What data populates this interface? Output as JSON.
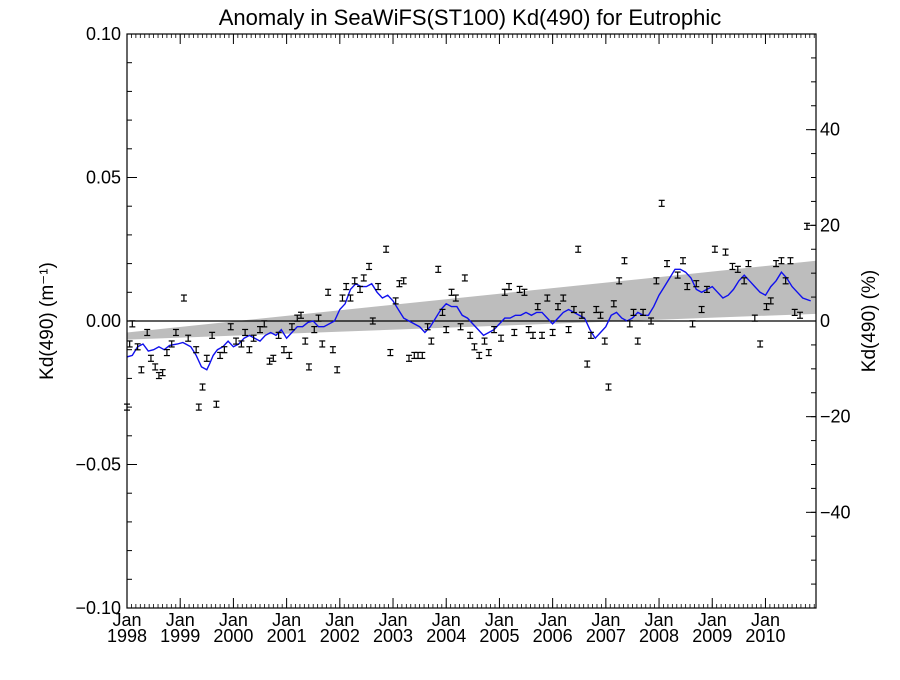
{
  "chart_data": {
    "type": "scatter",
    "title": "Anomaly in SeaWiFS(ST100) Kd(490) for Eutrophic",
    "ylabel": "Kd(490) (m⁻¹)",
    "y2label": "Kd(490) (%)",
    "xlim": [
      1998.0,
      2010.95
    ],
    "ylim": [
      -0.1,
      0.1
    ],
    "y2lim": [
      -60,
      60
    ],
    "yticks": [
      "0.10",
      "0.05",
      "0.00",
      "−0.05",
      "−0.10"
    ],
    "yticks_values": [
      0.1,
      0.05,
      0.0,
      -0.05,
      -0.1
    ],
    "y2ticks": [
      "40",
      "20",
      "0",
      "−20",
      "−40"
    ],
    "y2ticks_values": [
      40,
      20,
      0,
      -20,
      -40
    ],
    "xticks": [
      {
        "month": "Jan",
        "year": "1998",
        "value": 1998
      },
      {
        "month": "Jan",
        "year": "1999",
        "value": 1999
      },
      {
        "month": "Jan",
        "year": "2000",
        "value": 2000
      },
      {
        "month": "Jan",
        "year": "2001",
        "value": 2001
      },
      {
        "month": "Jan",
        "year": "2002",
        "value": 2002
      },
      {
        "month": "Jan",
        "year": "2003",
        "value": 2003
      },
      {
        "month": "Jan",
        "year": "2004",
        "value": 2004
      },
      {
        "month": "Jan",
        "year": "2005",
        "value": 2005
      },
      {
        "month": "Jan",
        "year": "2006",
        "value": 2006
      },
      {
        "month": "Jan",
        "year": "2007",
        "value": 2007
      },
      {
        "month": "Jan",
        "year": "2008",
        "value": 2008
      },
      {
        "month": "Jan",
        "year": "2009",
        "value": 2009
      },
      {
        "month": "Jan",
        "year": "2010",
        "value": 2010
      }
    ],
    "zero_line": 0.0,
    "trend_band": {
      "upper": [
        [
          1998.0,
          -0.004
        ],
        [
          2010.95,
          0.021
        ]
      ],
      "lower": [
        [
          1998.0,
          -0.0065
        ],
        [
          2010.95,
          0.0025
        ]
      ]
    },
    "series": [
      {
        "kind": "points",
        "values": [
          [
            1998.0,
            -0.03
          ],
          [
            1998.05,
            -0.008
          ],
          [
            1998.1,
            -0.001
          ],
          [
            1998.2,
            -0.009
          ],
          [
            1998.27,
            -0.017
          ],
          [
            1998.38,
            -0.004
          ],
          [
            1998.45,
            -0.013
          ],
          [
            1998.53,
            -0.016
          ],
          [
            1998.6,
            -0.019
          ],
          [
            1998.67,
            -0.018
          ],
          [
            1998.75,
            -0.011
          ],
          [
            1998.84,
            -0.008
          ],
          [
            1998.92,
            -0.004
          ],
          [
            1999.07,
            0.008
          ],
          [
            1999.15,
            -0.006
          ],
          [
            1999.3,
            -0.01
          ],
          [
            1999.35,
            -0.03
          ],
          [
            1999.42,
            -0.023
          ],
          [
            1999.5,
            -0.013
          ],
          [
            1999.6,
            -0.005
          ],
          [
            1999.68,
            -0.029
          ],
          [
            1999.75,
            -0.012
          ],
          [
            1999.83,
            -0.01
          ],
          [
            1999.95,
            -0.002
          ],
          [
            2000.05,
            -0.007
          ],
          [
            2000.15,
            -0.008
          ],
          [
            2000.22,
            -0.004
          ],
          [
            2000.3,
            -0.01
          ],
          [
            2000.38,
            -0.006
          ],
          [
            2000.5,
            -0.003
          ],
          [
            2000.58,
            -0.001
          ],
          [
            2000.68,
            -0.014
          ],
          [
            2000.75,
            -0.013
          ],
          [
            2000.85,
            -0.005
          ],
          [
            2000.95,
            -0.01
          ],
          [
            2001.05,
            -0.012
          ],
          [
            2001.1,
            -0.002
          ],
          [
            2001.2,
            0.001
          ],
          [
            2001.27,
            0.002
          ],
          [
            2001.35,
            -0.007
          ],
          [
            2001.42,
            -0.016
          ],
          [
            2001.52,
            -0.003
          ],
          [
            2001.6,
            0.001
          ],
          [
            2001.67,
            -0.008
          ],
          [
            2001.78,
            0.01
          ],
          [
            2001.87,
            -0.01
          ],
          [
            2001.95,
            -0.017
          ],
          [
            2002.05,
            0.008
          ],
          [
            2002.12,
            0.012
          ],
          [
            2002.2,
            0.008
          ],
          [
            2002.28,
            0.014
          ],
          [
            2002.38,
            0.011
          ],
          [
            2002.45,
            0.015
          ],
          [
            2002.55,
            0.019
          ],
          [
            2002.62,
            0.0
          ],
          [
            2002.72,
            0.012
          ],
          [
            2002.87,
            0.025
          ],
          [
            2002.95,
            -0.011
          ],
          [
            2003.05,
            0.007
          ],
          [
            2003.12,
            0.013
          ],
          [
            2003.2,
            0.014
          ],
          [
            2003.3,
            -0.013
          ],
          [
            2003.4,
            -0.012
          ],
          [
            2003.47,
            -0.012
          ],
          [
            2003.55,
            -0.012
          ],
          [
            2003.65,
            -0.002
          ],
          [
            2003.72,
            -0.007
          ],
          [
            2003.85,
            0.018
          ],
          [
            2003.93,
            0.003
          ],
          [
            2004.0,
            -0.003
          ],
          [
            2004.1,
            0.01
          ],
          [
            2004.18,
            0.008
          ],
          [
            2004.27,
            -0.002
          ],
          [
            2004.35,
            0.015
          ],
          [
            2004.45,
            -0.005
          ],
          [
            2004.53,
            -0.009
          ],
          [
            2004.62,
            -0.012
          ],
          [
            2004.72,
            -0.007
          ],
          [
            2004.8,
            -0.011
          ],
          [
            2004.9,
            -0.003
          ],
          [
            2005.03,
            -0.006
          ],
          [
            2005.1,
            0.01
          ],
          [
            2005.18,
            0.012
          ],
          [
            2005.28,
            -0.004
          ],
          [
            2005.38,
            0.011
          ],
          [
            2005.47,
            0.01
          ],
          [
            2005.55,
            -0.003
          ],
          [
            2005.63,
            -0.005
          ],
          [
            2005.72,
            0.005
          ],
          [
            2005.8,
            -0.005
          ],
          [
            2005.9,
            0.008
          ],
          [
            2006.0,
            -0.004
          ],
          [
            2006.1,
            0.005
          ],
          [
            2006.2,
            0.008
          ],
          [
            2006.3,
            -0.003
          ],
          [
            2006.4,
            0.004
          ],
          [
            2006.48,
            0.025
          ],
          [
            2006.55,
            0.002
          ],
          [
            2006.65,
            -0.015
          ],
          [
            2006.72,
            -0.005
          ],
          [
            2006.82,
            0.004
          ],
          [
            2006.9,
            0.002
          ],
          [
            2006.98,
            -0.007
          ],
          [
            2007.05,
            -0.023
          ],
          [
            2007.15,
            0.006
          ],
          [
            2007.25,
            0.014
          ],
          [
            2007.35,
            0.021
          ],
          [
            2007.45,
            -0.001
          ],
          [
            2007.52,
            0.003
          ],
          [
            2007.6,
            -0.007
          ],
          [
            2007.7,
            0.003
          ],
          [
            2007.85,
            0.0
          ],
          [
            2007.95,
            0.014
          ],
          [
            2008.05,
            0.041
          ],
          [
            2008.15,
            0.02
          ],
          [
            2008.35,
            0.016
          ],
          [
            2008.45,
            0.021
          ],
          [
            2008.53,
            0.012
          ],
          [
            2008.63,
            -0.001
          ],
          [
            2008.7,
            0.013
          ],
          [
            2008.8,
            0.004
          ],
          [
            2008.9,
            0.011
          ],
          [
            2009.05,
            0.025
          ],
          [
            2009.25,
            0.024
          ],
          [
            2009.38,
            0.019
          ],
          [
            2009.48,
            0.018
          ],
          [
            2009.6,
            0.014
          ],
          [
            2009.68,
            0.02
          ],
          [
            2009.8,
            0.001
          ],
          [
            2009.9,
            -0.008
          ],
          [
            2010.02,
            0.005
          ],
          [
            2010.1,
            0.007
          ],
          [
            2010.2,
            0.02
          ],
          [
            2010.3,
            0.021
          ],
          [
            2010.38,
            0.014
          ],
          [
            2010.47,
            0.021
          ],
          [
            2010.55,
            0.003
          ],
          [
            2010.65,
            0.002
          ],
          [
            2010.78,
            0.033
          ]
        ]
      },
      {
        "kind": "line",
        "color": "#1010ee",
        "values": [
          [
            1998.0,
            -0.0125
          ],
          [
            1998.1,
            -0.012
          ],
          [
            1998.2,
            -0.009
          ],
          [
            1998.3,
            -0.008
          ],
          [
            1998.4,
            -0.0105
          ],
          [
            1998.5,
            -0.01
          ],
          [
            1998.6,
            -0.009
          ],
          [
            1998.7,
            -0.01
          ],
          [
            1998.8,
            -0.0085
          ],
          [
            1998.95,
            -0.008
          ],
          [
            1999.05,
            -0.0075
          ],
          [
            1999.2,
            -0.009
          ],
          [
            1999.3,
            -0.012
          ],
          [
            1999.4,
            -0.016
          ],
          [
            1999.5,
            -0.017
          ],
          [
            1999.55,
            -0.015
          ],
          [
            1999.62,
            -0.012
          ],
          [
            1999.7,
            -0.01
          ],
          [
            1999.8,
            -0.009
          ],
          [
            1999.9,
            -0.007
          ],
          [
            2000.0,
            -0.009
          ],
          [
            2000.1,
            -0.008
          ],
          [
            2000.2,
            -0.006
          ],
          [
            2000.3,
            -0.005
          ],
          [
            2000.4,
            -0.006
          ],
          [
            2000.5,
            -0.007
          ],
          [
            2000.6,
            -0.005
          ],
          [
            2000.7,
            -0.004
          ],
          [
            2000.8,
            -0.005
          ],
          [
            2000.9,
            -0.003
          ],
          [
            2001.0,
            -0.006
          ],
          [
            2001.1,
            -0.004
          ],
          [
            2001.2,
            -0.002
          ],
          [
            2001.3,
            -0.002
          ],
          [
            2001.4,
            -0.0005
          ],
          [
            2001.5,
            0.0
          ],
          [
            2001.6,
            -0.002
          ],
          [
            2001.7,
            -0.002
          ],
          [
            2001.8,
            -0.001
          ],
          [
            2001.9,
            0.0
          ],
          [
            2002.0,
            0.004
          ],
          [
            2002.1,
            0.006
          ],
          [
            2002.2,
            0.011
          ],
          [
            2002.3,
            0.013
          ],
          [
            2002.4,
            0.012
          ],
          [
            2002.5,
            0.012
          ],
          [
            2002.6,
            0.013
          ],
          [
            2002.7,
            0.01
          ],
          [
            2002.8,
            0.008
          ],
          [
            2002.9,
            0.009
          ],
          [
            2003.0,
            0.007
          ],
          [
            2003.1,
            0.004
          ],
          [
            2003.2,
            0.001
          ],
          [
            2003.3,
            0.0
          ],
          [
            2003.4,
            -0.001
          ],
          [
            2003.5,
            -0.002
          ],
          [
            2003.6,
            -0.004
          ],
          [
            2003.7,
            -0.002
          ],
          [
            2003.8,
            0.001
          ],
          [
            2003.9,
            0.004
          ],
          [
            2004.0,
            0.006
          ],
          [
            2004.1,
            0.005
          ],
          [
            2004.2,
            0.005
          ],
          [
            2004.3,
            0.002
          ],
          [
            2004.4,
            0.001
          ],
          [
            2004.5,
            -0.001
          ],
          [
            2004.6,
            -0.003
          ],
          [
            2004.7,
            -0.005
          ],
          [
            2004.8,
            -0.004
          ],
          [
            2004.9,
            -0.003
          ],
          [
            2005.0,
            -0.001
          ],
          [
            2005.1,
            0.001
          ],
          [
            2005.2,
            0.001
          ],
          [
            2005.3,
            0.002
          ],
          [
            2005.4,
            0.002
          ],
          [
            2005.5,
            0.003
          ],
          [
            2005.6,
            0.002
          ],
          [
            2005.7,
            0.003
          ],
          [
            2005.8,
            0.003
          ],
          [
            2005.9,
            0.001
          ],
          [
            2006.0,
            -0.001
          ],
          [
            2006.1,
            0.001
          ],
          [
            2006.2,
            0.003
          ],
          [
            2006.3,
            0.004
          ],
          [
            2006.4,
            0.003
          ],
          [
            2006.5,
            0.002
          ],
          [
            2006.6,
            0.001
          ],
          [
            2006.7,
            -0.003
          ],
          [
            2006.8,
            -0.006
          ],
          [
            2006.9,
            -0.004
          ],
          [
            2007.0,
            -0.002
          ],
          [
            2007.1,
            0.002
          ],
          [
            2007.2,
            0.003
          ],
          [
            2007.3,
            0.001
          ],
          [
            2007.4,
            0.0
          ],
          [
            2007.5,
            0.001
          ],
          [
            2007.6,
            0.003
          ],
          [
            2007.7,
            0.002
          ],
          [
            2007.8,
            0.002
          ],
          [
            2007.9,
            0.005
          ],
          [
            2008.0,
            0.009
          ],
          [
            2008.1,
            0.012
          ],
          [
            2008.2,
            0.015
          ],
          [
            2008.3,
            0.018
          ],
          [
            2008.4,
            0.018
          ],
          [
            2008.5,
            0.017
          ],
          [
            2008.6,
            0.015
          ],
          [
            2008.7,
            0.011
          ],
          [
            2008.8,
            0.01
          ],
          [
            2008.9,
            0.011
          ],
          [
            2009.0,
            0.012
          ],
          [
            2009.1,
            0.01
          ],
          [
            2009.2,
            0.008
          ],
          [
            2009.3,
            0.009
          ],
          [
            2009.4,
            0.011
          ],
          [
            2009.5,
            0.014
          ],
          [
            2009.6,
            0.016
          ],
          [
            2009.7,
            0.014
          ],
          [
            2009.8,
            0.012
          ],
          [
            2009.9,
            0.01
          ],
          [
            2010.0,
            0.009
          ],
          [
            2010.1,
            0.012
          ],
          [
            2010.2,
            0.014
          ],
          [
            2010.3,
            0.017
          ],
          [
            2010.4,
            0.015
          ],
          [
            2010.5,
            0.012
          ],
          [
            2010.6,
            0.01
          ],
          [
            2010.7,
            0.008
          ],
          [
            2010.85,
            0.007
          ]
        ]
      }
    ]
  }
}
